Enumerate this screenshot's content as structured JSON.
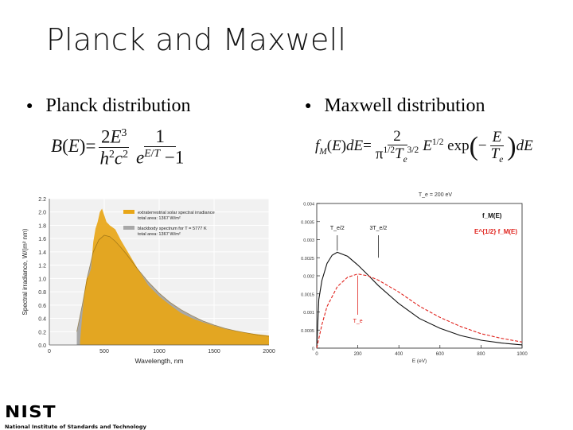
{
  "slide": {
    "title": "Planck and Maxwell"
  },
  "bullets": {
    "left": "Planck distribution",
    "right": "Maxwell distribution",
    "marker": "●"
  },
  "equations": {
    "planck": "B(E) = (2E^3 / h^2 c^2) · 1 / (e^{E/T} − 1)",
    "maxwell": "f_M(E) dE = (2 / (π^{1/2} T_e^{3/2})) E^{1/2} exp(−E/T_e) dE"
  },
  "logo": {
    "name": "NIST",
    "subtitle": "National Institute of Standards and Technology"
  },
  "chart_data": [
    {
      "type": "area",
      "xlabel": "Wavelength, nm",
      "ylabel": "Spectral irradiance, W/(m² nm)",
      "xlim": [
        0,
        2000
      ],
      "ylim": [
        0,
        2.2
      ],
      "xticks": [
        "0",
        "500",
        "1000",
        "1500",
        "2000"
      ],
      "yticks": [
        "0.0",
        "0.2",
        "0.4",
        "0.6",
        "0.8",
        "1.0",
        "1.2",
        "1.4",
        "1.6",
        "1.8",
        "2.0",
        "2.2"
      ],
      "legend_position": "top-right",
      "series": [
        {
          "name": "extraterrestrial solar spectral irradiance total area: 1367 W/m²",
          "color": "#e8a617",
          "x": [
            280,
            300,
            320,
            340,
            360,
            380,
            400,
            420,
            440,
            460,
            480,
            500,
            520,
            550,
            600,
            650,
            700,
            750,
            800,
            900,
            1000,
            1100,
            1200,
            1300,
            1400,
            1500,
            1600,
            1700,
            1800,
            1900,
            2000
          ],
          "y": [
            0.05,
            0.45,
            0.8,
            1.0,
            1.05,
            1.15,
            1.55,
            1.75,
            1.85,
            2.0,
            2.05,
            1.95,
            1.85,
            1.8,
            1.74,
            1.58,
            1.44,
            1.3,
            1.16,
            0.9,
            0.73,
            0.6,
            0.48,
            0.4,
            0.34,
            0.29,
            0.24,
            0.21,
            0.18,
            0.16,
            0.14
          ]
        },
        {
          "name": "blackbody spectrum for T = 5777 K total area: 1367 W/m²",
          "color": "#a8a8a8",
          "x": [
            250,
            300,
            350,
            400,
            450,
            500,
            550,
            600,
            650,
            700,
            750,
            800,
            900,
            1000,
            1100,
            1200,
            1300,
            1400,
            1500,
            1600,
            1700,
            1800,
            1900,
            2000
          ],
          "y": [
            0.2,
            0.6,
            1.05,
            1.4,
            1.58,
            1.65,
            1.63,
            1.56,
            1.47,
            1.37,
            1.26,
            1.15,
            0.95,
            0.78,
            0.64,
            0.53,
            0.44,
            0.36,
            0.3,
            0.25,
            0.21,
            0.18,
            0.15,
            0.13
          ]
        }
      ]
    },
    {
      "type": "line",
      "title": "T_e = 200 eV",
      "xlabel": "E (eV)",
      "xlim": [
        0,
        1000
      ],
      "ylim": [
        0,
        0.004
      ],
      "xticks": [
        "0",
        "200",
        "400",
        "600",
        "800",
        "1000"
      ],
      "yticks": [
        "0",
        "0.0005",
        "0.001",
        "0.0015",
        "0.002",
        "0.0025",
        "0.003",
        "0.0035",
        "0.004"
      ],
      "annotations": [
        "T_e/2",
        "3T_e/2",
        "T_e"
      ],
      "series": [
        {
          "name": "f_M(E)",
          "color": "#111111",
          "x": [
            0,
            10,
            25,
            50,
            75,
            100,
            150,
            200,
            250,
            300,
            400,
            500,
            600,
            700,
            800,
            900,
            1000
          ],
          "y": [
            0,
            0.00135,
            0.00187,
            0.00234,
            0.00257,
            0.00265,
            0.00254,
            0.0023,
            0.00202,
            0.00173,
            0.00123,
            0.00082,
            0.00055,
            0.00035,
            0.00022,
            0.00014,
            9e-05
          ]
        },
        {
          "name": "E^{1/2} f_M(E)",
          "color": "#e0231d",
          "x": [
            0,
            25,
            50,
            100,
            150,
            200,
            250,
            300,
            400,
            500,
            600,
            700,
            800,
            900,
            1000
          ],
          "y": [
            0,
            0.00065,
            0.00115,
            0.0017,
            0.00196,
            0.00205,
            0.002,
            0.00188,
            0.00155,
            0.00116,
            0.00085,
            0.0006,
            0.0004,
            0.00027,
            0.00017
          ]
        }
      ]
    }
  ]
}
